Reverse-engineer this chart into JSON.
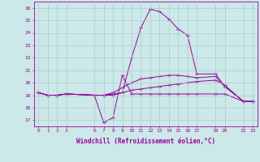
{
  "background_color": "#cce8e8",
  "grid_color": "#aacccc",
  "line_color": "#990099",
  "x_ticks": [
    0,
    1,
    2,
    3,
    6,
    7,
    8,
    9,
    10,
    11,
    12,
    13,
    14,
    15,
    16,
    17,
    19,
    20,
    22,
    23
  ],
  "xlabel": "Windchill (Refroidissement éolien,°C)",
  "ylim": [
    16.5,
    26.5
  ],
  "yticks": [
    17,
    18,
    19,
    20,
    21,
    22,
    23,
    24,
    25,
    26
  ],
  "line1_x": [
    0,
    1,
    2,
    3,
    6,
    7,
    8,
    9,
    10,
    11,
    12,
    13,
    14,
    15,
    16,
    17,
    19,
    20,
    22,
    23
  ],
  "line1_y": [
    19.2,
    19.0,
    19.0,
    19.1,
    19.0,
    16.8,
    17.2,
    20.6,
    19.1,
    19.1,
    19.1,
    19.1,
    19.1,
    19.1,
    19.1,
    19.1,
    19.1,
    19.1,
    18.5,
    18.5
  ],
  "line2_x": [
    0,
    1,
    2,
    3,
    6,
    7,
    8,
    9,
    10,
    11,
    12,
    13,
    14,
    15,
    16,
    17,
    19,
    20,
    22,
    23
  ],
  "line2_y": [
    19.2,
    19.0,
    19.0,
    19.1,
    19.0,
    19.0,
    19.1,
    19.2,
    19.4,
    19.5,
    19.6,
    19.7,
    19.8,
    19.9,
    20.0,
    20.1,
    20.2,
    19.8,
    18.5,
    18.5
  ],
  "line3_x": [
    0,
    1,
    2,
    3,
    6,
    7,
    8,
    9,
    10,
    11,
    12,
    13,
    14,
    15,
    16,
    17,
    19,
    20,
    22,
    23
  ],
  "line3_y": [
    19.2,
    19.0,
    19.0,
    19.1,
    19.0,
    19.0,
    19.2,
    19.6,
    20.0,
    20.3,
    20.4,
    20.5,
    20.6,
    20.6,
    20.5,
    20.4,
    20.5,
    19.7,
    18.5,
    18.5
  ],
  "line4_x": [
    0,
    1,
    2,
    3,
    6,
    7,
    8,
    9,
    10,
    11,
    12,
    13,
    14,
    15,
    16,
    17,
    19,
    20,
    22,
    23
  ],
  "line4_y": [
    19.2,
    19.0,
    19.0,
    19.1,
    19.0,
    19.0,
    19.0,
    19.2,
    22.0,
    24.4,
    25.9,
    25.7,
    25.1,
    24.3,
    23.8,
    20.7,
    20.7,
    19.7,
    18.5,
    18.5
  ]
}
